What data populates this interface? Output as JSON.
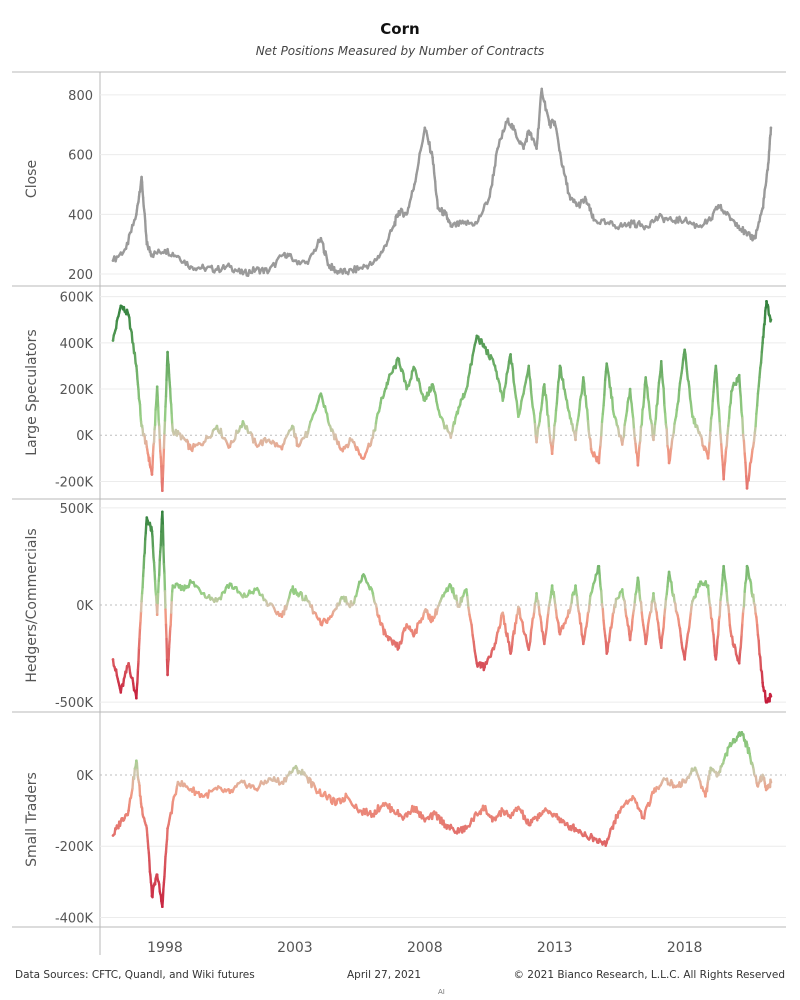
{
  "header": {
    "title": "Corn",
    "subtitle": "Net Positions Measured by Number of Contracts"
  },
  "footer": {
    "sources": "Data Sources: CFTC, Quandl, and Wiki futures",
    "date": "April 27, 2021",
    "copyright": "© 2021 Bianco Research, L.L.C. All Rights Reserved",
    "mark": "AI"
  },
  "colors": {
    "close_line": "#9a9a9a",
    "positive_strong": "#2e7d3a",
    "positive_light": "#98cf86",
    "neutral": "#d4c6b0",
    "negative_light": "#f19a84",
    "negative_strong": "#c41a3a",
    "grid": "#ececec",
    "axis": "#b8b8b8"
  },
  "chart_data": [
    {
      "type": "line",
      "ylabel": "Close",
      "ylim": [
        180,
        850
      ],
      "yticks": [
        200,
        400,
        600,
        800
      ],
      "ytick_labels": [
        "200",
        "400",
        "600",
        "800"
      ],
      "color_mode": "solid",
      "x": [
        1996.0,
        1996.5,
        1996.9,
        1997.1,
        1997.3,
        1997.5,
        1998.0,
        1998.5,
        1999.0,
        1999.5,
        2000.0,
        2000.5,
        2001.0,
        2001.5,
        2002.0,
        2002.6,
        2003.0,
        2003.5,
        2004.0,
        2004.3,
        2004.6,
        2005.0,
        2005.5,
        2006.0,
        2006.4,
        2006.8,
        2007.0,
        2007.3,
        2007.6,
        2008.0,
        2008.3,
        2008.5,
        2008.8,
        2009.0,
        2009.5,
        2010.0,
        2010.5,
        2010.8,
        2011.2,
        2011.5,
        2011.8,
        2012.0,
        2012.3,
        2012.5,
        2012.8,
        2013.0,
        2013.3,
        2013.6,
        2013.9,
        2014.2,
        2014.5,
        2015.0,
        2015.5,
        2016.0,
        2016.5,
        2017.0,
        2017.5,
        2018.0,
        2018.5,
        2019.0,
        2019.3,
        2019.6,
        2020.0,
        2020.4,
        2020.7,
        2021.0,
        2021.2,
        2021.32
      ],
      "values": [
        245,
        285,
        400,
        525,
        300,
        265,
        280,
        260,
        225,
        220,
        215,
        225,
        200,
        215,
        210,
        270,
        245,
        235,
        320,
        230,
        210,
        205,
        220,
        235,
        280,
        360,
        410,
        400,
        500,
        690,
        590,
        420,
        400,
        360,
        370,
        370,
        460,
        620,
        720,
        670,
        620,
        680,
        620,
        820,
        700,
        710,
        560,
        450,
        430,
        450,
        380,
        370,
        360,
        370,
        360,
        390,
        380,
        380,
        360,
        380,
        430,
        400,
        370,
        330,
        320,
        420,
        550,
        690
      ]
    },
    {
      "type": "line",
      "ylabel": "Large Speculators",
      "ylim": [
        -250000,
        620000
      ],
      "yticks": [
        -200000,
        0,
        200000,
        400000,
        600000
      ],
      "ytick_labels": [
        "-200K",
        "0K",
        "200K",
        "400K",
        "600K"
      ],
      "zero_line": true,
      "color_mode": "diverging",
      "color_extent": 600000,
      "x": [
        1996.0,
        1996.3,
        1996.6,
        1996.9,
        1997.1,
        1997.3,
        1997.5,
        1997.7,
        1997.9,
        1998.1,
        1998.3,
        1998.7,
        1999.0,
        1999.5,
        2000.0,
        2000.5,
        2001.0,
        2001.5,
        2002.0,
        2002.5,
        2002.9,
        2003.1,
        2003.5,
        2004.0,
        2004.4,
        2004.8,
        2005.2,
        2005.6,
        2006.0,
        2006.3,
        2006.6,
        2007.0,
        2007.3,
        2007.6,
        2008.0,
        2008.3,
        2008.6,
        2009.0,
        2009.3,
        2009.6,
        2010.0,
        2010.3,
        2010.7,
        2011.0,
        2011.3,
        2011.6,
        2012.0,
        2012.3,
        2012.6,
        2012.9,
        2013.2,
        2013.5,
        2013.8,
        2014.1,
        2014.4,
        2014.7,
        2015.0,
        2015.3,
        2015.6,
        2015.9,
        2016.2,
        2016.5,
        2016.8,
        2017.1,
        2017.4,
        2017.7,
        2018.0,
        2018.3,
        2018.6,
        2018.9,
        2019.2,
        2019.5,
        2019.8,
        2020.1,
        2020.4,
        2020.7,
        2021.0,
        2021.15,
        2021.32
      ],
      "values": [
        410000,
        560000,
        520000,
        300000,
        40000,
        -50000,
        -170000,
        210000,
        -240000,
        360000,
        20000,
        -10000,
        -60000,
        -30000,
        40000,
        -50000,
        60000,
        -40000,
        -20000,
        -60000,
        40000,
        -40000,
        10000,
        180000,
        20000,
        -60000,
        -20000,
        -100000,
        -10000,
        140000,
        240000,
        330000,
        200000,
        290000,
        150000,
        220000,
        80000,
        -10000,
        120000,
        200000,
        430000,
        380000,
        300000,
        150000,
        350000,
        80000,
        300000,
        -30000,
        220000,
        -80000,
        300000,
        120000,
        -20000,
        250000,
        -60000,
        -120000,
        310000,
        80000,
        -40000,
        200000,
        -130000,
        250000,
        -20000,
        320000,
        -120000,
        110000,
        370000,
        80000,
        0,
        -100000,
        300000,
        -190000,
        190000,
        260000,
        -230000,
        10000,
        400000,
        580000,
        500000
      ]
    },
    {
      "type": "line",
      "ylabel": "Hedgers/Commercials",
      "ylim": [
        -520000,
        520000
      ],
      "yticks": [
        -500000,
        0,
        500000
      ],
      "ytick_labels": [
        "-500K",
        "0K",
        "500K"
      ],
      "zero_line": true,
      "color_mode": "diverging",
      "color_extent": 500000,
      "x": [
        1996.0,
        1996.3,
        1996.6,
        1996.9,
        1997.1,
        1997.3,
        1997.5,
        1997.7,
        1997.9,
        1998.1,
        1998.3,
        1998.7,
        1999.0,
        1999.5,
        2000.0,
        2000.5,
        2001.0,
        2001.5,
        2002.0,
        2002.5,
        2002.9,
        2003.1,
        2003.5,
        2004.0,
        2004.4,
        2004.8,
        2005.2,
        2005.6,
        2006.0,
        2006.3,
        2006.6,
        2007.0,
        2007.3,
        2007.6,
        2008.0,
        2008.3,
        2008.6,
        2009.0,
        2009.3,
        2009.6,
        2010.0,
        2010.3,
        2010.7,
        2011.0,
        2011.3,
        2011.6,
        2012.0,
        2012.3,
        2012.6,
        2012.9,
        2013.2,
        2013.5,
        2013.8,
        2014.1,
        2014.4,
        2014.7,
        2015.0,
        2015.3,
        2015.6,
        2015.9,
        2016.2,
        2016.5,
        2016.8,
        2017.1,
        2017.4,
        2017.7,
        2018.0,
        2018.3,
        2018.6,
        2018.9,
        2019.2,
        2019.5,
        2019.8,
        2020.1,
        2020.4,
        2020.7,
        2021.0,
        2021.15,
        2021.32
      ],
      "values": [
        -280000,
        -450000,
        -300000,
        -480000,
        20000,
        450000,
        380000,
        -50000,
        480000,
        -360000,
        100000,
        80000,
        120000,
        60000,
        20000,
        110000,
        40000,
        80000,
        0,
        -60000,
        80000,
        60000,
        20000,
        -100000,
        -60000,
        40000,
        0,
        150000,
        60000,
        -100000,
        -180000,
        -220000,
        -100000,
        -150000,
        -30000,
        -80000,
        20000,
        100000,
        0,
        80000,
        -300000,
        -320000,
        -200000,
        -40000,
        -250000,
        -10000,
        -230000,
        60000,
        -200000,
        100000,
        -150000,
        -60000,
        100000,
        -200000,
        60000,
        200000,
        -250000,
        0,
        80000,
        -180000,
        140000,
        -200000,
        60000,
        -220000,
        170000,
        -40000,
        -280000,
        20000,
        120000,
        100000,
        -280000,
        200000,
        -160000,
        -300000,
        200000,
        0,
        -400000,
        -500000,
        -470000
      ]
    },
    {
      "type": "line",
      "ylabel": "Small Traders",
      "ylim": [
        -410000,
        160000
      ],
      "yticks": [
        -400000,
        -200000,
        0
      ],
      "ytick_labels": [
        "-400K",
        "-200K",
        "0K"
      ],
      "zero_line": true,
      "color_mode": "diverging",
      "color_extent": 400000,
      "x": [
        1996.0,
        1996.3,
        1996.6,
        1996.9,
        1997.1,
        1997.3,
        1997.5,
        1997.7,
        1997.9,
        1998.1,
        1998.5,
        1999.0,
        1999.5,
        2000.0,
        2000.5,
        2001.0,
        2001.5,
        2002.0,
        2002.5,
        2003.0,
        2003.4,
        2003.8,
        2004.2,
        2004.6,
        2005.0,
        2005.5,
        2006.0,
        2006.4,
        2006.8,
        2007.2,
        2007.6,
        2008.0,
        2008.4,
        2008.8,
        2009.2,
        2009.6,
        2010.0,
        2010.3,
        2010.6,
        2011.0,
        2011.3,
        2011.6,
        2012.0,
        2012.3,
        2012.6,
        2013.0,
        2013.4,
        2013.8,
        2014.2,
        2014.6,
        2015.0,
        2015.3,
        2015.6,
        2016.0,
        2016.4,
        2016.8,
        2017.2,
        2017.6,
        2018.0,
        2018.4,
        2018.8,
        2019.0,
        2019.3,
        2019.6,
        2019.9,
        2020.2,
        2020.5,
        2020.8,
        2021.0,
        2021.15,
        2021.32
      ],
      "values": [
        -170000,
        -130000,
        -100000,
        40000,
        -90000,
        -150000,
        -340000,
        -280000,
        -370000,
        -150000,
        -20000,
        -40000,
        -60000,
        -40000,
        -50000,
        -20000,
        -40000,
        -10000,
        -20000,
        20000,
        0,
        -40000,
        -60000,
        -80000,
        -60000,
        -100000,
        -110000,
        -80000,
        -100000,
        -120000,
        -90000,
        -130000,
        -110000,
        -140000,
        -160000,
        -150000,
        -110000,
        -90000,
        -130000,
        -100000,
        -120000,
        -90000,
        -140000,
        -120000,
        -100000,
        -110000,
        -140000,
        -150000,
        -170000,
        -180000,
        -190000,
        -130000,
        -90000,
        -60000,
        -120000,
        -50000,
        -10000,
        -30000,
        -20000,
        20000,
        -60000,
        20000,
        0,
        60000,
        100000,
        120000,
        60000,
        -30000,
        0,
        -40000,
        -20000
      ]
    }
  ],
  "x_axis": {
    "xlim": [
      1995.5,
      2021.9
    ],
    "ticks": [
      1998,
      2003,
      2008,
      2013,
      2018
    ],
    "tick_labels": [
      "1998",
      "2003",
      "2008",
      "2013",
      "2018"
    ]
  }
}
